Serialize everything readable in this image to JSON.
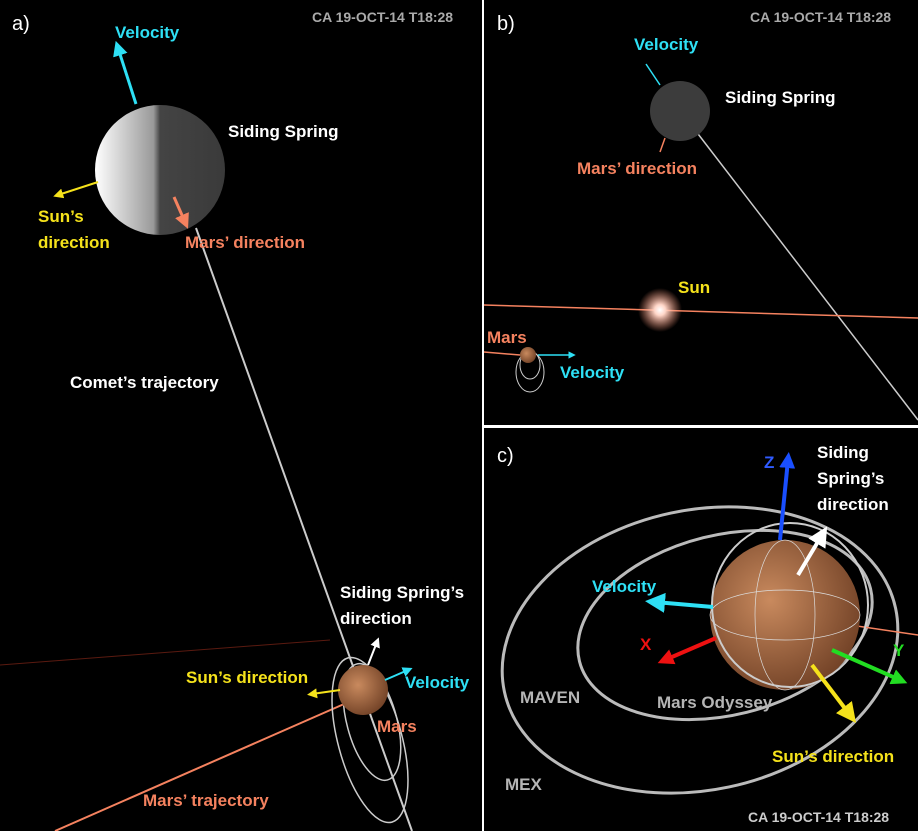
{
  "panel_a": {
    "label": "a)",
    "timestamp": "CA 19-OCT-14 T18:28",
    "comet_velocity": "Velocity",
    "comet_name": "Siding Spring",
    "comet_sun_direction": [
      "Sun’s",
      "direction"
    ],
    "comet_mars_direction": "Mars’ direction",
    "comet_trajectory": "Comet’s trajectory",
    "mars_siding_spring_direction": [
      "Siding Spring’s",
      "direction"
    ],
    "mars_sun_direction": "Sun’s direction",
    "mars_velocity": "Velocity",
    "mars_name": "Mars",
    "mars_trajectory": "Mars’ trajectory"
  },
  "panel_b": {
    "label": "b)",
    "timestamp": "CA 19-OCT-14 T18:28",
    "comet_velocity": "Velocity",
    "comet_name": "Siding Spring",
    "comet_mars_direction": "Mars’ direction",
    "sun_name": "Sun",
    "mars_name": "Mars",
    "mars_velocity": "Velocity"
  },
  "panel_c": {
    "label": "c)",
    "z_axis": "Z",
    "siding_spring_direction": [
      "Siding",
      "Spring’s",
      "direction"
    ],
    "velocity": "Velocity",
    "x_axis": "X",
    "y_axis": "Y",
    "maven": "MAVEN",
    "mars_odyssey": "Mars Odyssey",
    "sun_direction": "Sun’s direction",
    "mex": "MEX",
    "timestamp": "CA 19-OCT-14 T18:28"
  }
}
